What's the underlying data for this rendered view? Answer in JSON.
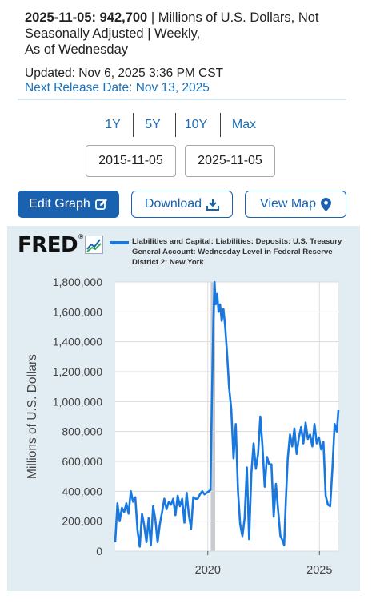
{
  "header": {
    "obs_date": "2025-11-05:",
    "obs_value": "942,700",
    "units_line1": "| Millions of U.S. Dollars, Not",
    "units_line2": "Seasonally Adjusted | Weekly,",
    "units_line3": "As of Wednesday",
    "updated": "Updated: Nov 6, 2025 3:36 PM CST",
    "next_release": "Next Release Date: Nov 13, 2025"
  },
  "range_buttons": [
    "1Y",
    "5Y",
    "10Y",
    "Max"
  ],
  "date_range": {
    "start": "2015-11-05",
    "end": "2025-11-05"
  },
  "actions": {
    "edit_graph": "Edit Graph",
    "download": "Download",
    "view_map": "View Map"
  },
  "branding": {
    "logo": "FRED"
  },
  "colors": {
    "accent": "#1a62b0",
    "series": "#1878e0",
    "chart_bg": "#e2ecf3",
    "link": "#1d6fb8"
  },
  "icons": [
    "pencil-square-icon",
    "download-icon",
    "map-pin-icon",
    "fred-chart-badge-icon"
  ],
  "chart_data": {
    "type": "line",
    "legend": "Liabilities and Capital: Liabilities: Deposits: U.S. Treasury General Account: Wednesday Level in Federal Reserve District 2: New York",
    "legend_lines": [
      "Liabilities and Capital: Liabilities: Deposits: U.S. Treasury",
      "General Account: Wednesday Level in Federal Reserve",
      "District 2: New York"
    ],
    "ylabel": "Millions of U.S. Dollars",
    "xlabel": "",
    "ylim": [
      0,
      1800000
    ],
    "yticks": [
      0,
      200000,
      400000,
      600000,
      800000,
      1000000,
      1200000,
      1400000,
      1600000,
      1800000
    ],
    "ytick_labels": [
      "0",
      "200,000",
      "400,000",
      "600,000",
      "800,000",
      "1,000,000",
      "1,200,000",
      "1,400,000",
      "1,600,000",
      "1,800,000"
    ],
    "xlim": [
      2015.85,
      2025.85
    ],
    "xticks": [
      2020,
      2025
    ],
    "xtick_labels": [
      "2020",
      "2025"
    ],
    "shaded_recession": [
      2020.13,
      2020.33
    ],
    "grid": true,
    "series": [
      {
        "name": "Liabilities and Capital: Liabilities: Deposits: U.S. Treasury General Account: Wednesday Level in Federal Reserve District 2: New York",
        "x": [
          2015.85,
          2015.95,
          2016.05,
          2016.15,
          2016.25,
          2016.35,
          2016.45,
          2016.55,
          2016.65,
          2016.75,
          2016.85,
          2016.95,
          2017.05,
          2017.15,
          2017.25,
          2017.35,
          2017.45,
          2017.55,
          2017.65,
          2017.75,
          2017.85,
          2017.95,
          2018.05,
          2018.15,
          2018.25,
          2018.35,
          2018.45,
          2018.55,
          2018.65,
          2018.75,
          2018.85,
          2018.95,
          2019.05,
          2019.15,
          2019.25,
          2019.35,
          2019.45,
          2019.55,
          2019.65,
          2019.75,
          2019.85,
          2019.95,
          2020.05,
          2020.12,
          2020.18,
          2020.25,
          2020.3,
          2020.35,
          2020.42,
          2020.48,
          2020.55,
          2020.62,
          2020.7,
          2020.78,
          2020.87,
          2020.95,
          2021.05,
          2021.15,
          2021.25,
          2021.35,
          2021.45,
          2021.55,
          2021.65,
          2021.75,
          2021.85,
          2021.95,
          2022.05,
          2022.15,
          2022.25,
          2022.35,
          2022.45,
          2022.55,
          2022.65,
          2022.75,
          2022.85,
          2022.95,
          2023.05,
          2023.15,
          2023.25,
          2023.35,
          2023.42,
          2023.5,
          2023.58,
          2023.68,
          2023.78,
          2023.88,
          2023.98,
          2024.08,
          2024.18,
          2024.28,
          2024.38,
          2024.48,
          2024.58,
          2024.68,
          2024.78,
          2024.88,
          2024.98,
          2025.08,
          2025.18,
          2025.28,
          2025.38,
          2025.48,
          2025.58,
          2025.68,
          2025.78,
          2025.85
        ],
        "values": [
          60000,
          320000,
          200000,
          290000,
          260000,
          320000,
          250000,
          400000,
          330000,
          360000,
          140000,
          30000,
          250000,
          170000,
          60000,
          220000,
          40000,
          300000,
          210000,
          60000,
          180000,
          260000,
          350000,
          280000,
          330000,
          310000,
          350000,
          240000,
          370000,
          300000,
          350000,
          190000,
          390000,
          240000,
          150000,
          360000,
          350000,
          350000,
          380000,
          400000,
          380000,
          390000,
          400000,
          410000,
          1000000,
          1550000,
          1800000,
          1650000,
          1720000,
          1600000,
          1650000,
          1540000,
          1620000,
          1500000,
          1300000,
          1100000,
          950000,
          620000,
          850000,
          400000,
          180000,
          100000,
          220000,
          560000,
          80000,
          520000,
          720000,
          550000,
          650000,
          900000,
          700000,
          430000,
          630000,
          580000,
          580000,
          230000,
          450000,
          270000,
          100000,
          70000,
          40000,
          350000,
          620000,
          780000,
          700000,
          820000,
          650000,
          760000,
          830000,
          720000,
          860000,
          750000,
          780000,
          700000,
          850000,
          720000,
          760000,
          680000,
          730000,
          370000,
          310000,
          300000,
          550000,
          850000,
          800000,
          942700
        ]
      }
    ]
  }
}
